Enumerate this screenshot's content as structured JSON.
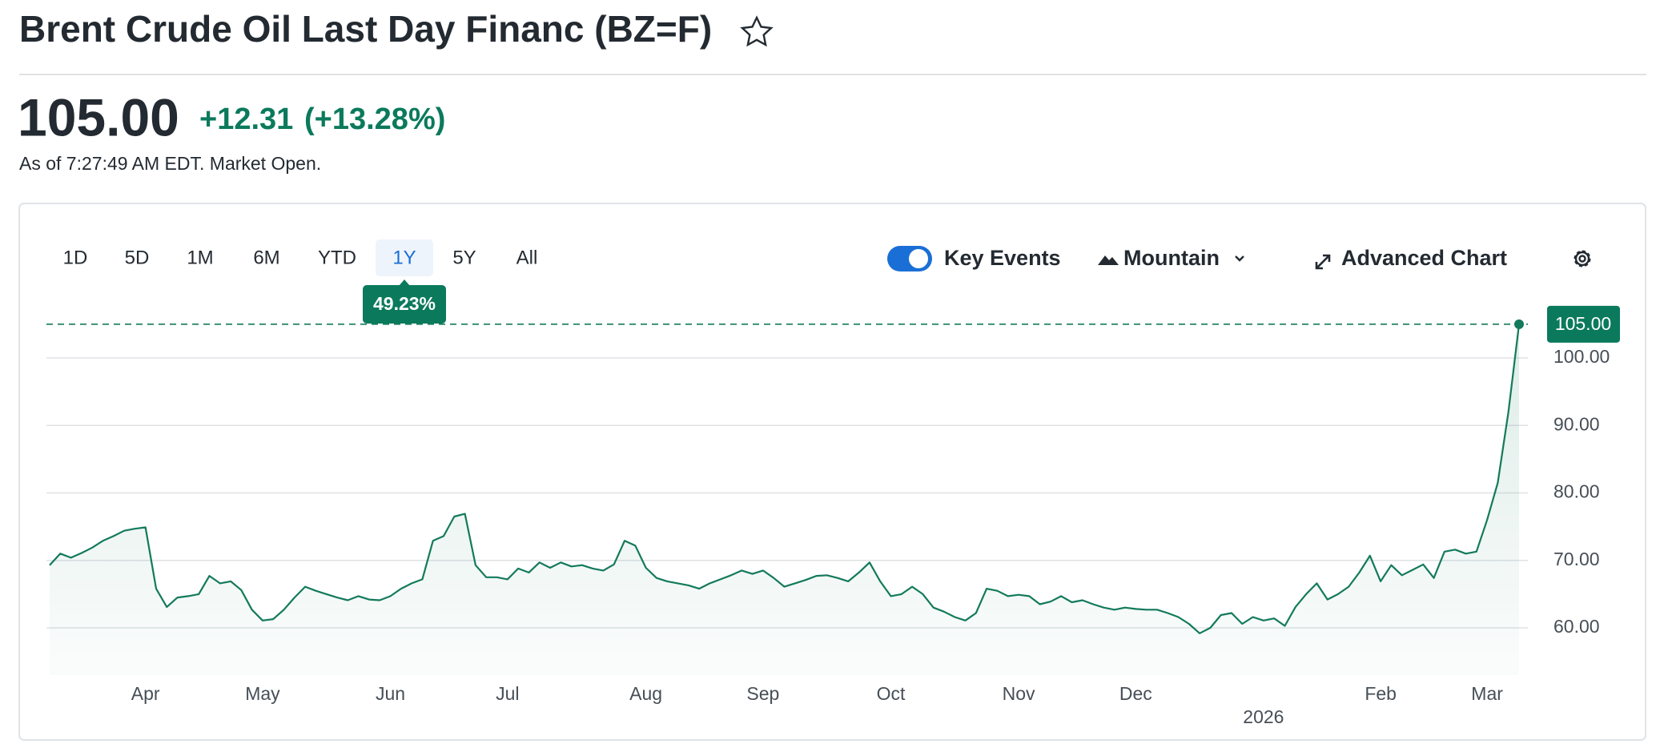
{
  "header": {
    "title": "Brent Crude Oil Last Day Financ (BZ=F)",
    "price": "105.00",
    "change": "+12.31",
    "change_percent": "(+13.28%)",
    "status": "As of 7:27:49 AM EDT. Market Open."
  },
  "toolbar": {
    "ranges": [
      "1D",
      "5D",
      "1M",
      "6M",
      "YTD",
      "1Y",
      "5Y",
      "All"
    ],
    "selected_range": "1Y",
    "range_return": "49.23%",
    "key_events": "Key Events",
    "chart_style": "Mountain",
    "advanced": "Advanced Chart"
  },
  "chart_data": {
    "type": "area",
    "color": "#137a5b",
    "categories": [
      null,
      null,
      null,
      null,
      null,
      null,
      null,
      null,
      null,
      "Apr",
      null,
      null,
      null,
      null,
      null,
      null,
      null,
      null,
      null,
      null,
      "May",
      null,
      null,
      null,
      null,
      null,
      null,
      null,
      null,
      null,
      null,
      null,
      "Jun",
      null,
      null,
      null,
      null,
      null,
      null,
      null,
      null,
      null,
      null,
      "Jul",
      null,
      null,
      null,
      null,
      null,
      null,
      null,
      null,
      null,
      null,
      null,
      null,
      "Aug",
      null,
      null,
      null,
      null,
      null,
      null,
      null,
      null,
      null,
      null,
      "Sep",
      null,
      null,
      null,
      null,
      null,
      null,
      null,
      null,
      null,
      null,
      null,
      "Oct",
      null,
      null,
      null,
      null,
      null,
      null,
      null,
      null,
      null,
      null,
      null,
      "Nov",
      null,
      null,
      null,
      null,
      null,
      null,
      null,
      null,
      null,
      null,
      "Dec",
      null,
      null,
      null,
      null,
      null,
      null,
      null,
      null,
      null,
      null,
      null,
      "2026",
      null,
      null,
      null,
      null,
      null,
      null,
      null,
      null,
      null,
      null,
      "Feb",
      null,
      null,
      null,
      null,
      null,
      null,
      null,
      null,
      null,
      "Mar",
      null,
      null,
      null
    ],
    "values": [
      69.3,
      71.0,
      70.4,
      71.1,
      71.9,
      72.9,
      73.6,
      74.4,
      74.7,
      74.9,
      65.8,
      63.1,
      64.5,
      64.7,
      65.0,
      67.7,
      66.6,
      66.9,
      65.6,
      62.7,
      61.1,
      61.3,
      62.7,
      64.5,
      66.1,
      65.5,
      65.0,
      64.5,
      64.1,
      64.7,
      64.2,
      64.1,
      64.7,
      65.8,
      66.6,
      67.2,
      72.9,
      73.6,
      76.5,
      76.9,
      69.3,
      67.5,
      67.5,
      67.2,
      68.8,
      68.2,
      69.7,
      68.9,
      69.7,
      69.1,
      69.3,
      68.8,
      68.5,
      69.4,
      72.9,
      72.2,
      68.9,
      67.4,
      66.9,
      66.6,
      66.3,
      65.8,
      66.6,
      67.2,
      67.8,
      68.5,
      68.0,
      68.5,
      67.4,
      66.1,
      66.6,
      67.1,
      67.7,
      67.8,
      67.4,
      66.9,
      68.2,
      69.7,
      66.9,
      64.7,
      65.0,
      66.1,
      65.0,
      63.0,
      62.4,
      61.6,
      61.1,
      62.2,
      65.8,
      65.5,
      64.7,
      64.9,
      64.7,
      63.5,
      63.9,
      64.7,
      63.8,
      64.1,
      63.5,
      63.0,
      62.7,
      63.0,
      62.8,
      62.7,
      62.7,
      62.2,
      61.6,
      60.6,
      59.2,
      60.0,
      61.9,
      62.2,
      60.6,
      61.6,
      61.1,
      61.4,
      60.3,
      63.1,
      65.0,
      66.6,
      64.2,
      65.0,
      66.1,
      68.2,
      70.7,
      66.9,
      69.3,
      67.8,
      68.6,
      69.4,
      67.4,
      71.3,
      71.6,
      71.0,
      71.3,
      76.0,
      81.5,
      92.0,
      105.0
    ],
    "ylim": [
      53,
      107
    ],
    "yticks": [
      {
        "value": 60,
        "label": "60.00"
      },
      {
        "value": 70,
        "label": "70.00"
      },
      {
        "value": 80,
        "label": "80.00"
      },
      {
        "value": 90,
        "label": "90.00"
      },
      {
        "value": 100,
        "label": "100.00"
      }
    ],
    "grid": true
  }
}
